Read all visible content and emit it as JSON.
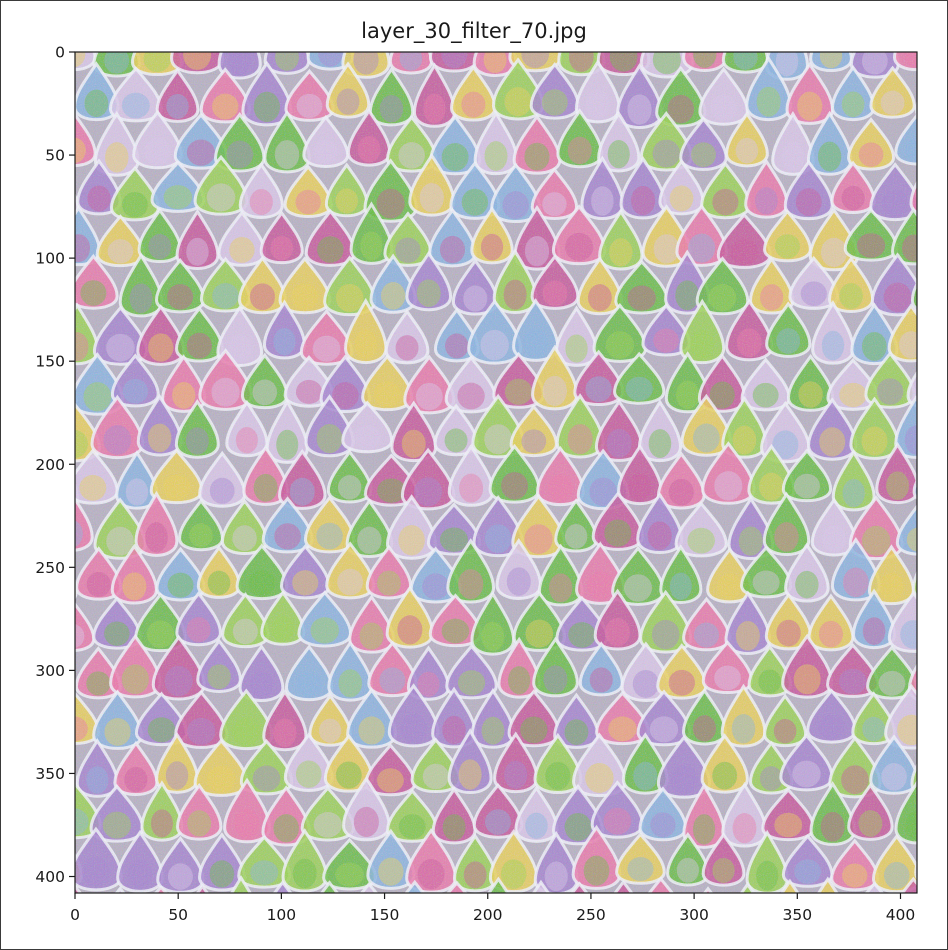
{
  "figure": {
    "title": "layer_30_filter_70.jpg",
    "image_description": "synthetic feature-visualization texture of overlapping scale-like droplet shapes in pink, green, purple and pale blue tones"
  },
  "axes": {
    "x_ticks": [
      "0",
      "50",
      "100",
      "150",
      "200",
      "250",
      "300",
      "350",
      "400"
    ],
    "y_ticks": [
      "0",
      "50",
      "100",
      "150",
      "200",
      "250",
      "300",
      "350",
      "400"
    ],
    "x_range": [
      0,
      408
    ],
    "y_range": [
      0,
      408
    ],
    "y_inverted": true
  },
  "colors": {
    "palette": [
      "#e97fae",
      "#9fd25a",
      "#a88ad0",
      "#d9c8e8",
      "#6fbf4a",
      "#c95fa0",
      "#8fb6e0",
      "#e8d060"
    ]
  }
}
